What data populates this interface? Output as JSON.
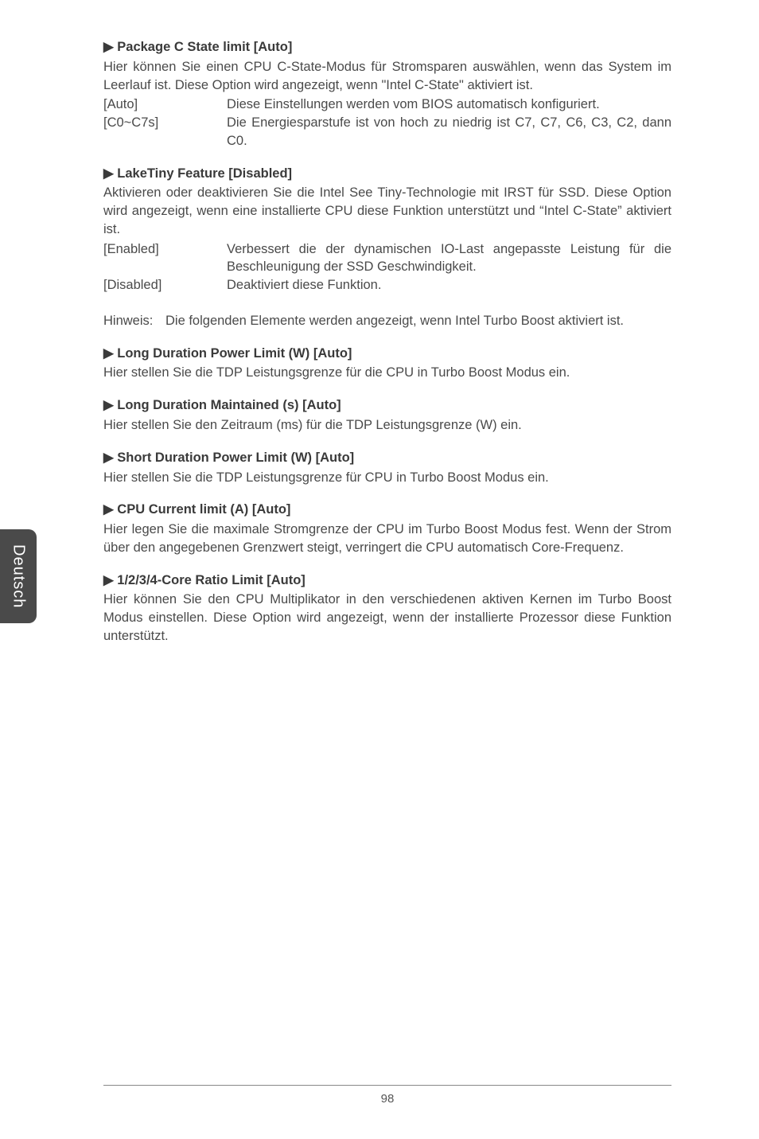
{
  "sideTab": "Deutsch",
  "pageNumber": "98",
  "sections": [
    {
      "heading": "▶ Package C State limit [Auto]",
      "body": "Hier können Sie einen CPU C-State-Modus für Stromsparen auswählen, wenn das System im Leerlauf ist. Diese Option wird angezeigt, wenn \"Intel C-State\" aktiviert ist.",
      "options": [
        {
          "key": "[Auto]",
          "val": "Diese Einstellungen werden vom BIOS automatisch konfiguriert."
        },
        {
          "key": "[C0~C7s]",
          "val": "Die Energiesparstufe ist von hoch zu niedrig ist C7, C7, C6, C3, C2, dann C0."
        }
      ]
    },
    {
      "heading": "▶ LakeTiny Feature [Disabled]",
      "body": "Aktivieren oder deaktivieren Sie die Intel See Tiny-Technologie mit IRST für SSD. Diese Option wird angezeigt, wenn eine installierte CPU diese Funktion unterstützt und “Intel C-State” aktiviert ist.",
      "options": [
        {
          "key": "[Enabled]",
          "val": "Verbessert die der dynamischen IO-Last angepasste Leistung für die Beschleunigung der SSD Geschwindigkeit."
        },
        {
          "key": "[Disabled]",
          "val": "Deaktiviert diese Funktion."
        }
      ]
    }
  ],
  "note": {
    "label": "Hinweis:",
    "text": "Die folgenden Elemente werden angezeigt, wenn Intel Turbo Boost aktiviert ist."
  },
  "sections2": [
    {
      "heading": "▶ Long Duration Power Limit (W) [Auto]",
      "body": "Hier stellen Sie die TDP Leistungsgrenze für die CPU in Turbo Boost Modus ein."
    },
    {
      "heading": "▶ Long Duration Maintained (s) [Auto]",
      "body": "Hier stellen Sie den Zeitraum (ms) für die TDP Leistungsgrenze (W) ein."
    },
    {
      "heading": "▶ Short Duration Power Limit (W) [Auto]",
      "body": "Hier stellen Sie die TDP Leistungsgrenze für CPU in Turbo Boost Modus ein."
    },
    {
      "heading": "▶ CPU Current limit (A) [Auto]",
      "body": "Hier legen Sie die maximale Stromgrenze der CPU im Turbo Boost Modus fest. Wenn der Strom über den angegebenen Grenzwert steigt, verringert die CPU automatisch Core-Frequenz."
    },
    {
      "heading": "▶ 1/2/3/4-Core Ratio Limit [Auto]",
      "body": "Hier können Sie den CPU Multiplikator in den verschiedenen aktiven Kernen im Turbo Boost Modus einstellen. Diese Option wird angezeigt, wenn der installierte Prozessor diese Funktion unterstützt."
    }
  ]
}
